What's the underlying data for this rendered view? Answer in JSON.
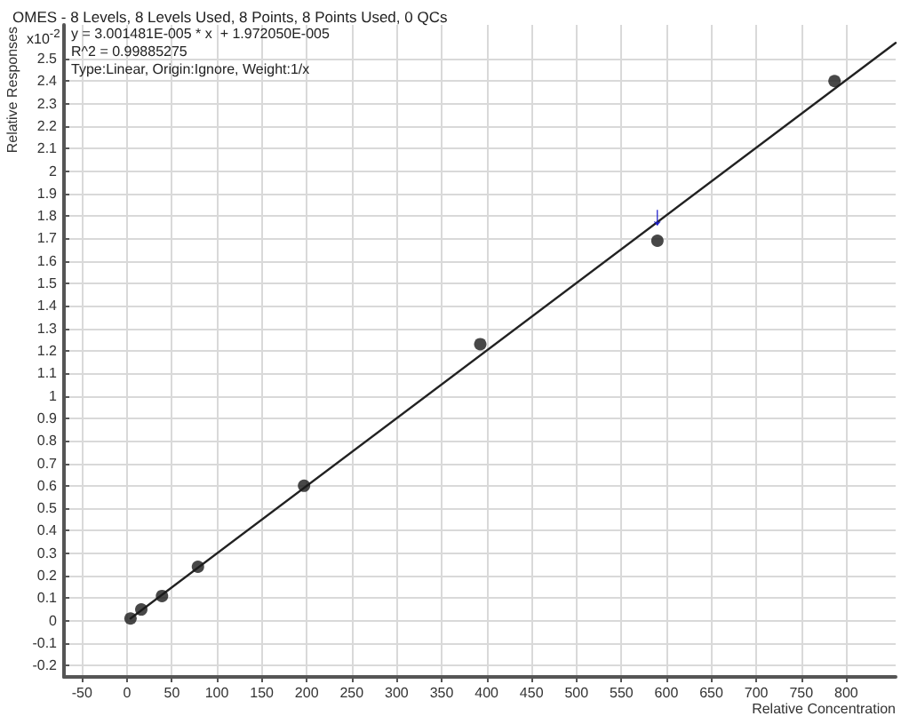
{
  "chart_data": {
    "type": "scatter",
    "title": "OMES - 8 Levels, 8 Levels Used, 8 Points, 8 Points Used, 0 QCs",
    "xlabel": "Relative Concentration",
    "ylabel": "Relative Responses",
    "annotations": [
      "x10$^{-2}$",
      "y = 3.001481E-005 * x  + 1.972050E-005",
      "R^2 = 0.99885275",
      "Type:Linear, Origin:Ignore, Weight:1/x",
      {
        "text": "↓",
        "x": 590,
        "y": 1.69
      }
    ],
    "series": [
      {
        "type": "scatter",
        "x": [
          4,
          16,
          39,
          79,
          197,
          393,
          590,
          787
        ],
        "values": [
          0.01,
          0.05,
          0.11,
          0.24,
          0.6,
          1.23,
          1.69,
          2.4
        ],
        "color": "#1a1a1a",
        "marker": "circle"
      },
      {
        "type": "line",
        "x": [
          4,
          855
        ],
        "values": [
          0.01,
          2.57
        ],
        "color": "#222222",
        "marker": "none"
      }
    ],
    "xlim": [
      -70,
      855
    ],
    "xticks": [
      -50,
      0,
      50,
      100,
      150,
      200,
      250,
      300,
      350,
      400,
      450,
      500,
      550,
      600,
      650,
      700,
      750,
      800
    ],
    "ylim": [
      -0.25,
      2.65
    ],
    "yticks": [
      -0.2,
      -0.1,
      0,
      0.1,
      0.2,
      0.3,
      0.4,
      0.5,
      0.6,
      0.7,
      0.8,
      0.9,
      1,
      1.1,
      1.2,
      1.3,
      1.4,
      1.5,
      1.6,
      1.7,
      1.8,
      1.9,
      2,
      2.1,
      2.2,
      2.3,
      2.4,
      2.5
    ],
    "grid": true
  }
}
